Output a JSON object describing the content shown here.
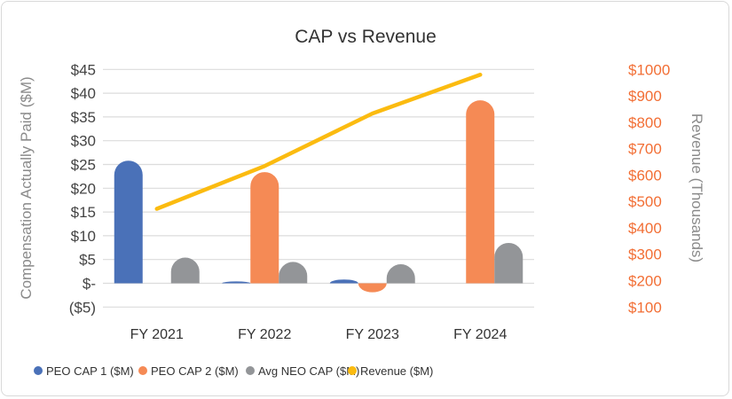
{
  "chart_data": {
    "type": "bar",
    "title": "CAP vs Revenue",
    "categories": [
      "FY 2021",
      "FY 2022",
      "FY 2023",
      "FY 2024"
    ],
    "ylabel": "Compensation Actually Paid ($M)",
    "y2label": "Revenue (Thousands)",
    "ylim": [
      -5,
      45
    ],
    "y2lim": [
      100,
      1000
    ],
    "yticks": [
      "($5)",
      "$-",
      "$5",
      "$10",
      "$15",
      "$20",
      "$25",
      "$30",
      "$35",
      "$40",
      "$45"
    ],
    "y2ticks": [
      "$100",
      "$200",
      "$300",
      "$400",
      "$500",
      "$600",
      "$700",
      "$800",
      "$900",
      "$1000"
    ],
    "grid": true,
    "legend_position": "bottom",
    "series": [
      {
        "name": "PEO CAP 1 ($M)",
        "type": "bar",
        "axis": "left",
        "color": "#4A71B8",
        "values": [
          25.8,
          0.4,
          0.8,
          0
        ]
      },
      {
        "name": "PEO CAP 2 ($M)",
        "type": "bar",
        "axis": "left",
        "color": "#F58A55",
        "values": [
          0,
          23.4,
          -1.9,
          38.5
        ]
      },
      {
        "name": "Avg NEO CAP ($M)",
        "type": "bar",
        "axis": "left",
        "color": "#939598",
        "values": [
          5.4,
          4.5,
          4.0,
          8.5
        ]
      },
      {
        "name": "Revenue ($M)",
        "type": "line",
        "axis": "right",
        "color": "#FBBB10",
        "values": [
          472,
          634,
          833,
          980
        ]
      }
    ]
  }
}
